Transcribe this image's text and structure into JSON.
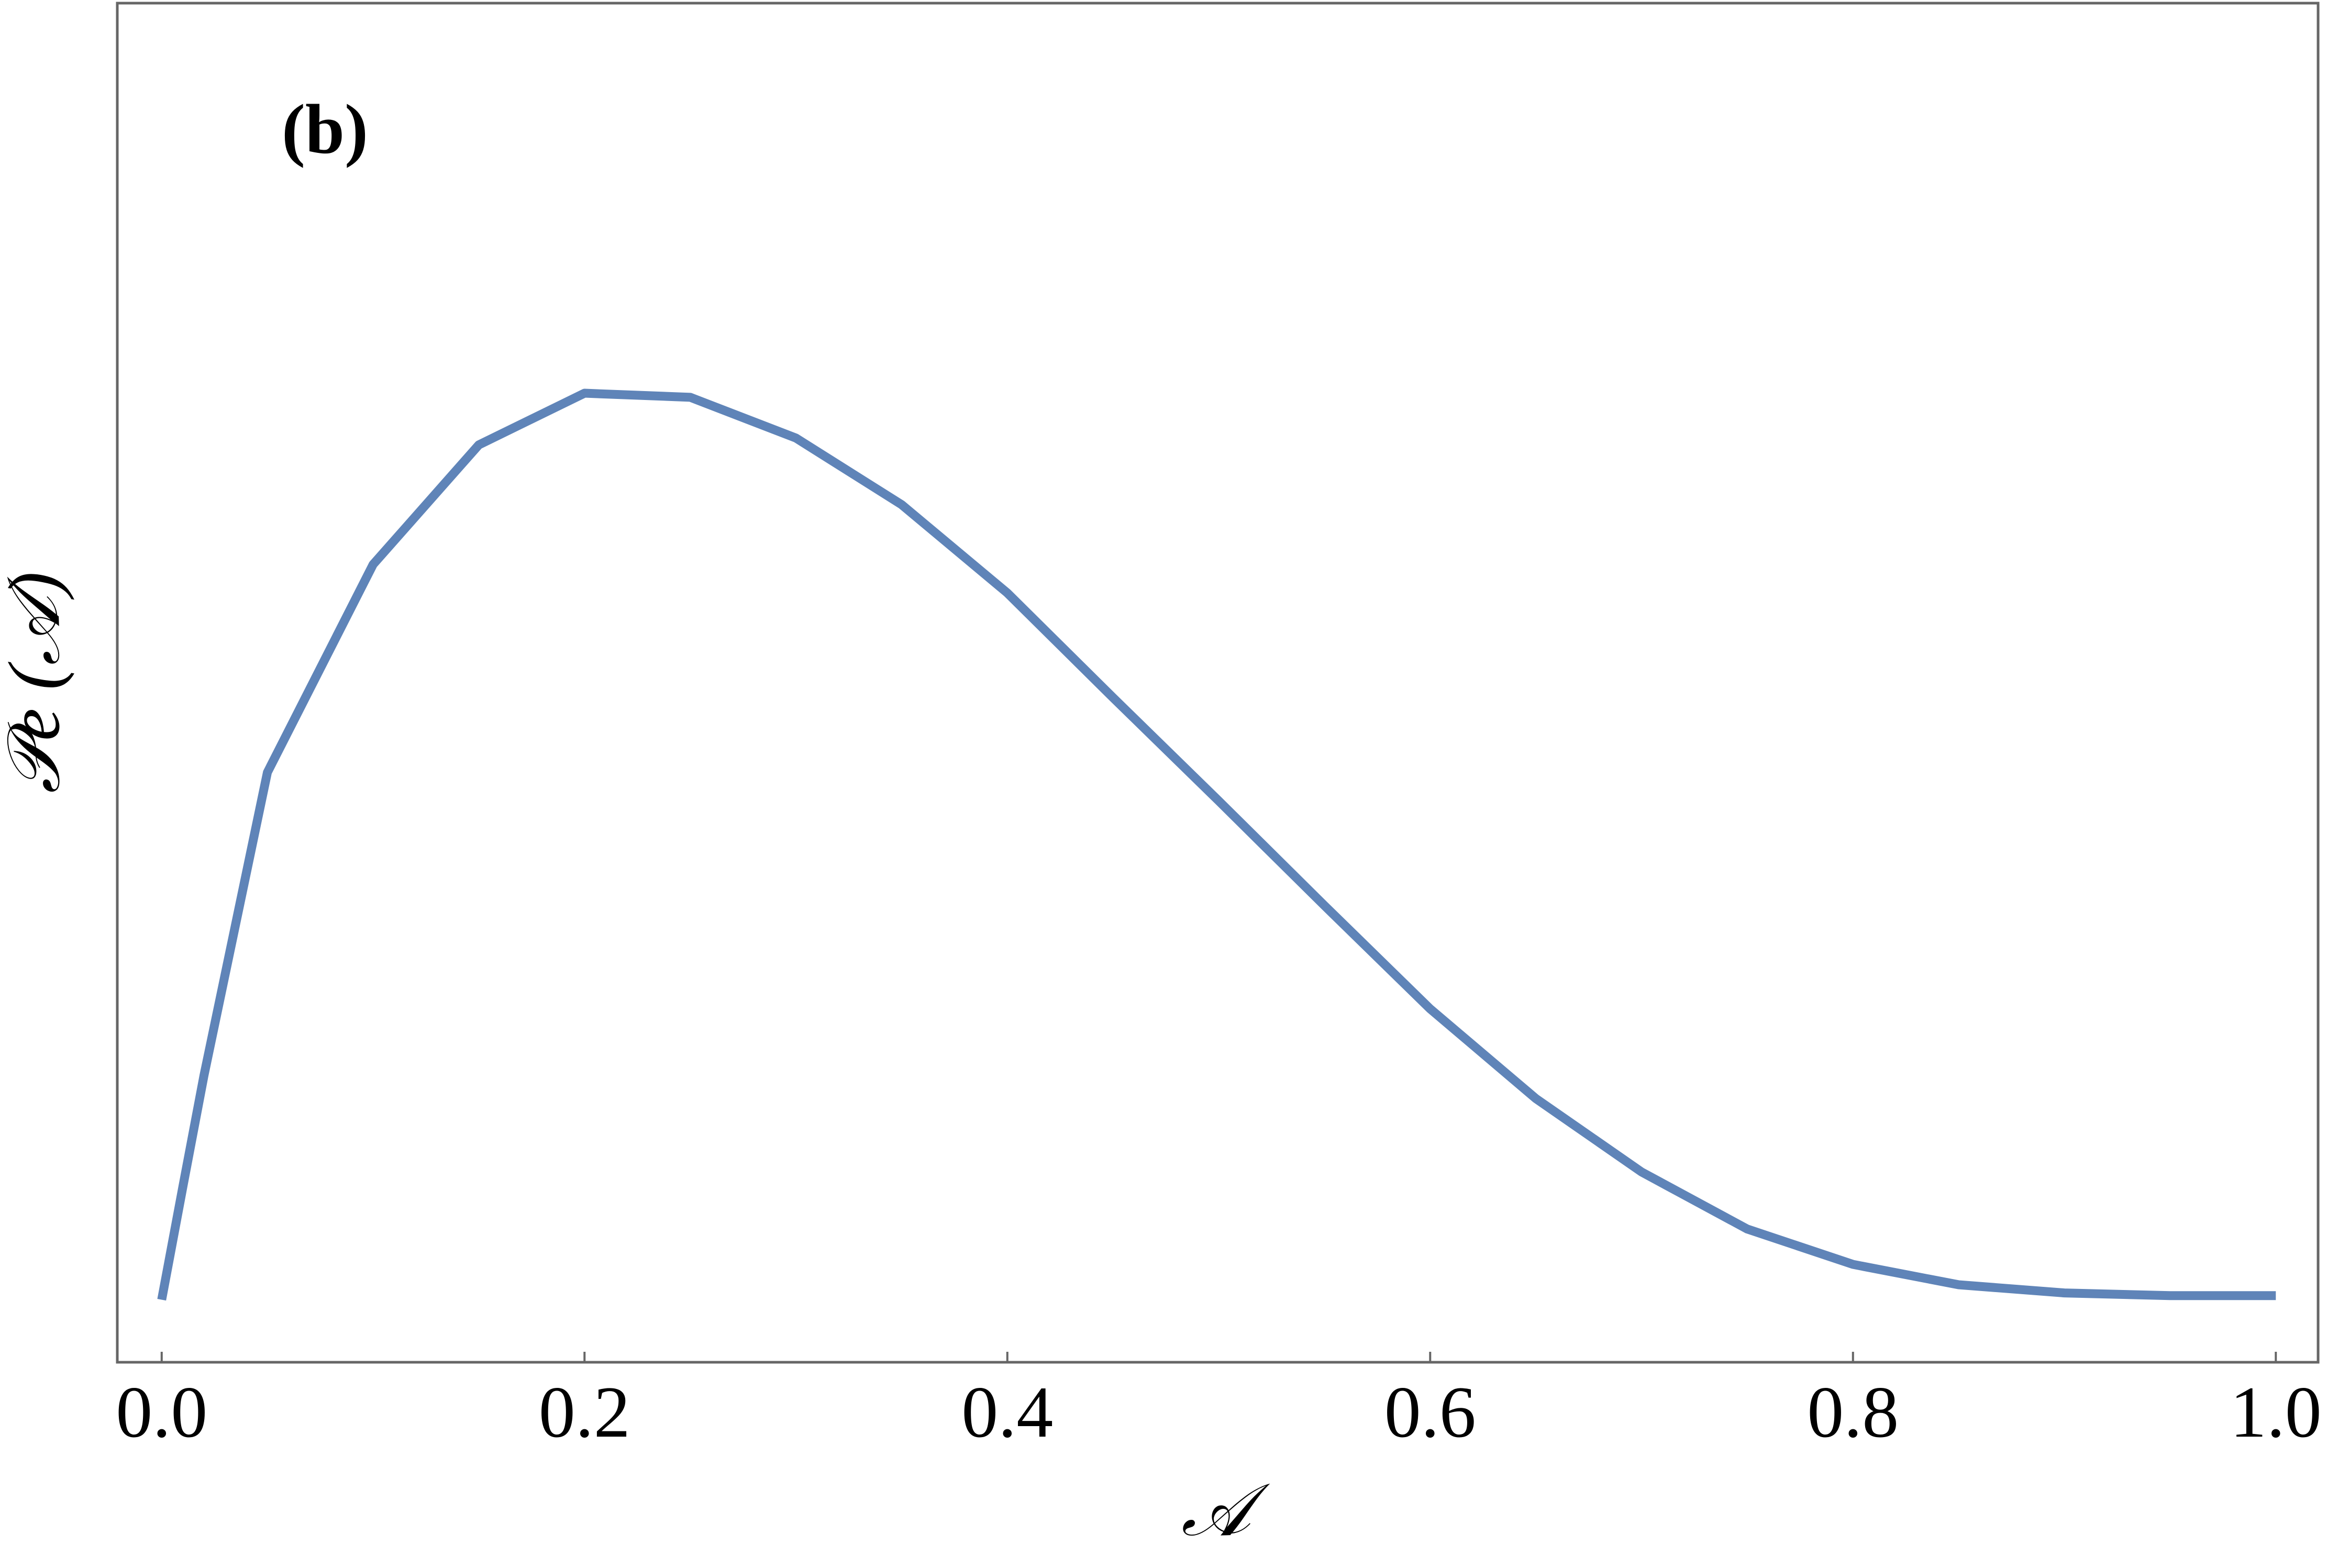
{
  "chart_data": {
    "type": "line",
    "annotation": "(b)",
    "x_label": "𝒜",
    "y_label": "𝒫e (𝒜)",
    "x": [
      0,
      0.01,
      0.02,
      0.05,
      0.1,
      0.15,
      0.2,
      0.25,
      0.3,
      0.35,
      0.4,
      0.45,
      0.5,
      0.55,
      0.6,
      0.65,
      0.7,
      0.75,
      0.8,
      0.85,
      0.9,
      0.95,
      1.0
    ],
    "series": [
      {
        "color": "#5f84b8",
        "values": [
          0.046,
          0.129,
          0.211,
          0.434,
          0.587,
          0.675,
          0.713,
          0.71,
          0.68,
          0.631,
          0.566,
          0.489,
          0.413,
          0.336,
          0.26,
          0.194,
          0.14,
          0.098,
          0.072,
          0.057,
          0.051,
          0.049,
          0.049
        ]
      }
    ],
    "xlim": [
      -0.021,
      1.02
    ],
    "ylim": [
      0,
      1
    ],
    "xticks": [
      {
        "value": 0,
        "label": "0.0"
      },
      0.2,
      0.4,
      0.6,
      0.8,
      {
        "value": 1,
        "label": "1.0"
      }
    ]
  }
}
